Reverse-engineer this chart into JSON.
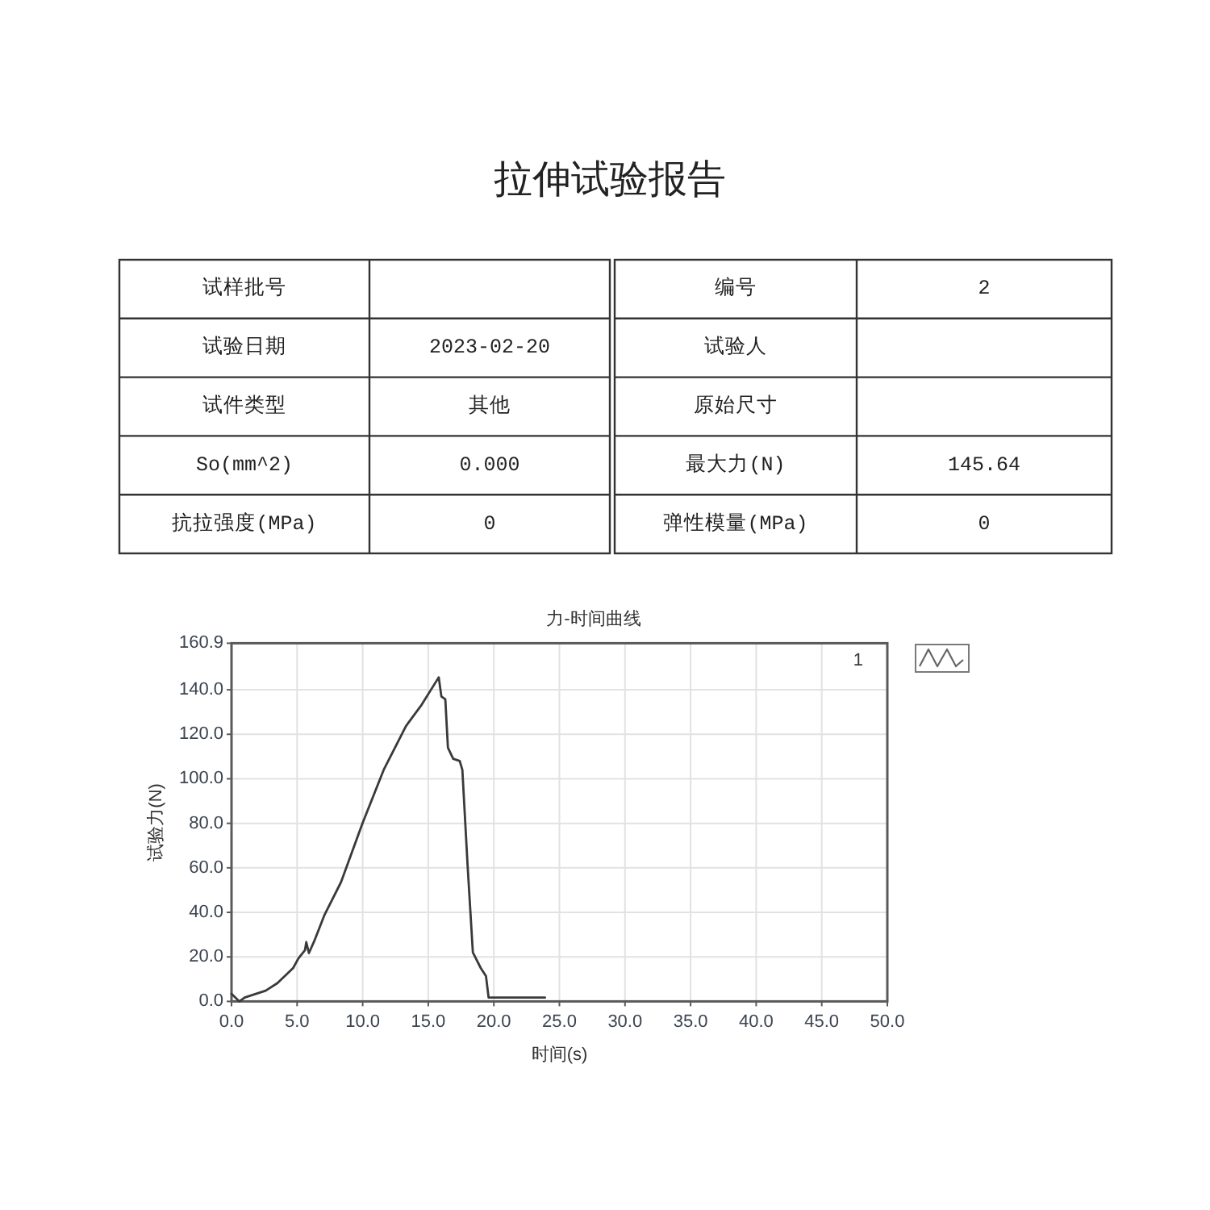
{
  "chart_data": [
    {
      "type": "other",
      "title": "拉伸试验报告",
      "annotations": [
        "试样批号",
        null,
        "编号",
        "2",
        "试验日期",
        "2023-02-20",
        "试验人",
        null,
        "试件类型",
        "其他",
        "原始尺寸",
        null,
        "So(mm^2)",
        "0.000",
        "最大力(N)",
        "145.64",
        "抗拉强度(MPa)",
        "0",
        "弹性模量(MPa)",
        "0"
      ]
    },
    {
      "type": "line",
      "title": "力-时间曲线",
      "xlabel": "时间(s)",
      "ylabel": "试验力(N)",
      "xlim": [
        0,
        50
      ],
      "ylim": [
        0,
        160.9
      ],
      "xticks": [
        {
          "value": 0,
          "label": "0.0"
        },
        {
          "value": 5,
          "label": "5.0"
        },
        {
          "value": 10,
          "label": "10.0"
        },
        {
          "value": 15,
          "label": "15.0"
        },
        {
          "value": 20,
          "label": "20.0"
        },
        {
          "value": 25,
          "label": "25.0"
        },
        {
          "value": 30,
          "label": "30.0"
        },
        {
          "value": 35,
          "label": "35.0"
        },
        {
          "value": 40,
          "label": "40.0"
        },
        {
          "value": 45,
          "label": "45.0"
        },
        {
          "value": 50,
          "label": "50.0"
        }
      ],
      "yticks": [
        {
          "value": 0,
          "label": "0.0"
        },
        {
          "value": 20,
          "label": "20.0"
        },
        {
          "value": 40,
          "label": "40.0"
        },
        {
          "value": 60,
          "label": "60.0"
        },
        {
          "value": 80,
          "label": "80.0"
        },
        {
          "value": 100,
          "label": "100.0"
        },
        {
          "value": 120,
          "label": "120.0"
        },
        {
          "value": 140,
          "label": "140.0"
        },
        160.9
      ],
      "grid": true,
      "legend": "top right",
      "line_style": "solid",
      "series": [
        {
          "name": "1",
          "color": "#3a3a3a",
          "x": [
            0,
            0.6,
            1.0,
            2.6,
            3.5,
            4.7,
            5.1,
            5.6,
            5.7,
            5.9,
            6.3,
            7.1,
            8.35,
            10.0,
            11.6,
            13.3,
            14.5,
            15.8,
            16.0,
            16.3,
            16.5,
            16.9,
            17.4,
            17.6,
            18.0,
            18.4,
            19.0,
            19.4,
            19.6,
            23.9
          ],
          "values": [
            3.4,
            0,
            1.7,
            4.8,
            8.2,
            15,
            19.3,
            23,
            26.6,
            21.7,
            27,
            39,
            53.6,
            80.2,
            104,
            123.7,
            133.3,
            145.6,
            137,
            135.7,
            114,
            109,
            108,
            104,
            61,
            22,
            15,
            11.4,
            1.7,
            1.7
          ]
        }
      ]
    }
  ]
}
